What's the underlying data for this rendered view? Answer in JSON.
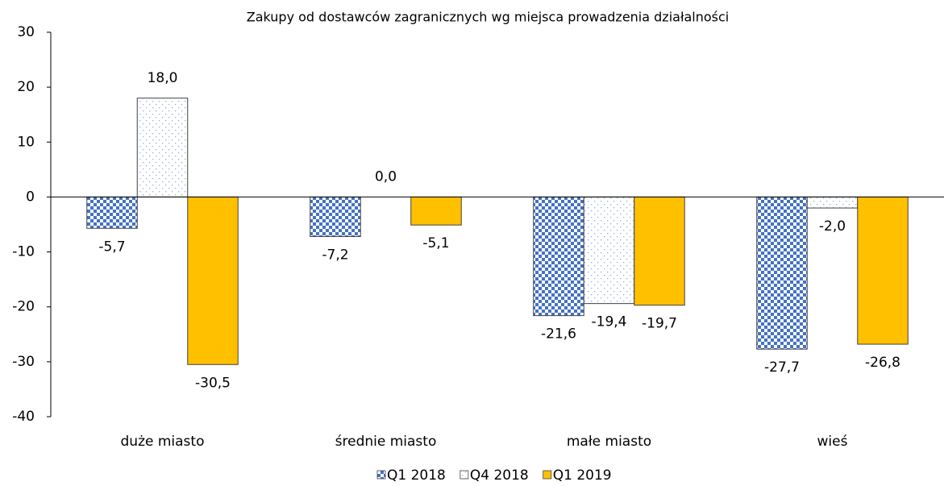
{
  "chart_data": {
    "type": "bar",
    "title": "Zakupy od dostawców zagranicznych wg miejsca prowadzenia działalności",
    "categories": [
      "duże miasto",
      "średnie miasto",
      "małe miasto",
      "wieś"
    ],
    "series": [
      {
        "name": "Q1 2018",
        "color": "#4472c4",
        "pattern": "checker",
        "values": [
          -5.7,
          -7.2,
          -21.6,
          -27.7
        ],
        "value_labels": [
          "-5,7",
          "-7,2",
          "-21,6",
          "-27,7"
        ]
      },
      {
        "name": "Q4 2018",
        "color": "#8fb0dc",
        "pattern": "dots",
        "values": [
          18.0,
          0.0,
          -19.4,
          -2.0
        ],
        "value_labels": [
          "18,0",
          "0,0",
          "-19,4",
          "-2,0"
        ]
      },
      {
        "name": "Q1 2019",
        "color": "#ffc000",
        "pattern": "solid",
        "values": [
          -30.5,
          -5.1,
          -19.7,
          -26.8
        ],
        "value_labels": [
          "-30,5",
          "-5,1",
          "-19,7",
          "-26,8"
        ]
      }
    ],
    "ylim": [
      -40,
      30
    ],
    "yticks": [
      -40,
      -30,
      -20,
      -10,
      0,
      10,
      20,
      30
    ],
    "legend": "bottom"
  }
}
